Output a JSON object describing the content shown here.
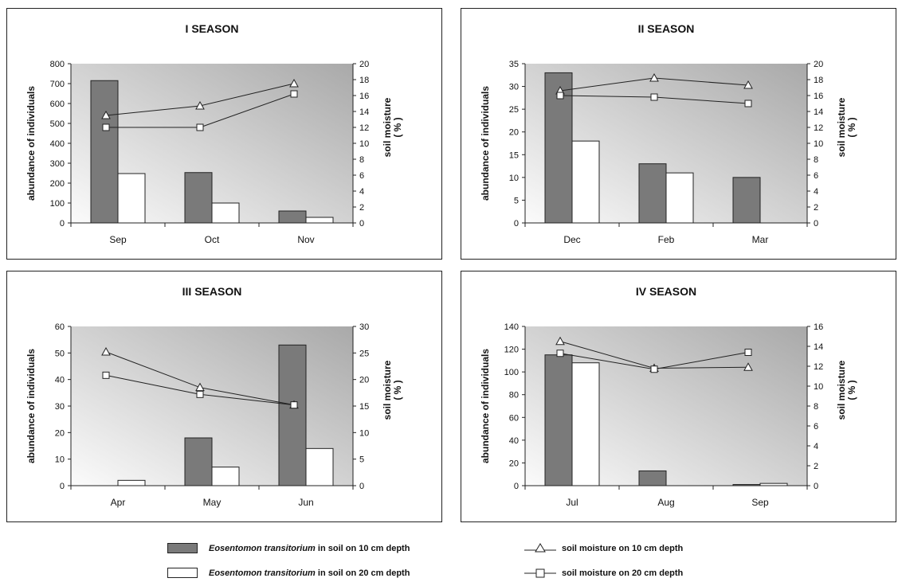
{
  "colors": {
    "bar_10cm": "#7a7a7a",
    "bar_20cm": "#ffffff",
    "line": "#222222",
    "plot_bg_light": "#fbfbfb",
    "plot_bg_dark": "#a9a9a9"
  },
  "chart_data": [
    {
      "type": "bar",
      "title": "I SEASON",
      "categories": [
        "Sep",
        "Oct",
        "Nov"
      ],
      "ylabel": "abundance of individuals",
      "y2label_line1": "soil moisture",
      "y2label_line2": "( % )",
      "ylim": [
        0,
        800
      ],
      "yticks": [
        0,
        100,
        200,
        300,
        400,
        500,
        600,
        700,
        800
      ],
      "y2lim": [
        0,
        20
      ],
      "y2ticks": [
        0,
        2,
        4,
        6,
        8,
        10,
        12,
        14,
        16,
        18,
        20
      ],
      "series": [
        {
          "legend_ref": "bar10",
          "values": [
            715,
            253,
            60
          ]
        },
        {
          "legend_ref": "bar20",
          "values": [
            248,
            100,
            28
          ]
        }
      ],
      "lines": [
        {
          "legend_ref": "moist10",
          "marker": "triangle",
          "values": [
            13.5,
            14.7,
            17.5
          ]
        },
        {
          "legend_ref": "moist20",
          "marker": "square",
          "values": [
            12,
            12,
            16.2
          ]
        }
      ]
    },
    {
      "type": "bar",
      "title": "II SEASON",
      "categories": [
        "Dec",
        "Feb",
        "Mar"
      ],
      "ylabel": "abundance of individuals",
      "y2label_line1": "soil moisture",
      "y2label_line2": "( % )",
      "ylim": [
        0,
        35
      ],
      "yticks": [
        0,
        5,
        10,
        15,
        20,
        25,
        30,
        35
      ],
      "y2lim": [
        0,
        20
      ],
      "y2ticks": [
        0,
        2,
        4,
        6,
        8,
        10,
        12,
        14,
        16,
        18,
        20
      ],
      "series": [
        {
          "legend_ref": "bar10",
          "values": [
            33,
            13,
            10
          ]
        },
        {
          "legend_ref": "bar20",
          "values": [
            18,
            11,
            0
          ]
        }
      ],
      "lines": [
        {
          "legend_ref": "moist10",
          "marker": "triangle",
          "values": [
            16.6,
            18.2,
            17.3
          ]
        },
        {
          "legend_ref": "moist20",
          "marker": "square",
          "values": [
            16,
            15.8,
            15
          ]
        }
      ]
    },
    {
      "type": "bar",
      "title": "III SEASON",
      "categories": [
        "Apr",
        "May",
        "Jun"
      ],
      "ylabel": "abundance of individuals",
      "y2label_line1": "soil moisture",
      "y2label_line2": "( % )",
      "ylim": [
        0,
        60
      ],
      "yticks": [
        0,
        10,
        20,
        30,
        40,
        50,
        60
      ],
      "y2lim": [
        0,
        30
      ],
      "y2ticks": [
        0,
        5,
        10,
        15,
        20,
        25,
        30
      ],
      "series": [
        {
          "legend_ref": "bar10",
          "values": [
            0,
            18,
            53
          ]
        },
        {
          "legend_ref": "bar20",
          "values": [
            2,
            7,
            14
          ]
        }
      ],
      "lines": [
        {
          "legend_ref": "moist10",
          "marker": "triangle",
          "values": [
            25.2,
            18.5,
            15.2
          ]
        },
        {
          "legend_ref": "moist20",
          "marker": "square",
          "values": [
            20.8,
            17.2,
            15.2
          ]
        }
      ]
    },
    {
      "type": "bar",
      "title": "IV SEASON",
      "categories": [
        "Jul",
        "Aug",
        "Sep"
      ],
      "ylabel": "abundance of individuals",
      "y2label_line1": "soil moisture",
      "y2label_line2": "( % )",
      "ylim": [
        0,
        140
      ],
      "yticks": [
        0,
        20,
        40,
        60,
        80,
        100,
        120,
        140
      ],
      "y2lim": [
        0,
        16
      ],
      "y2ticks": [
        0,
        2,
        4,
        6,
        8,
        10,
        12,
        14,
        16
      ],
      "series": [
        {
          "legend_ref": "bar10",
          "values": [
            115,
            13,
            1
          ]
        },
        {
          "legend_ref": "bar20",
          "values": [
            108,
            0,
            2
          ]
        }
      ],
      "lines": [
        {
          "legend_ref": "moist10",
          "marker": "triangle",
          "values": [
            14.5,
            11.8,
            11.9
          ]
        },
        {
          "legend_ref": "moist20",
          "marker": "square",
          "values": [
            13.3,
            11.7,
            13.4
          ]
        }
      ]
    }
  ],
  "legend": {
    "bar10": {
      "species": "Eosentomon transitorium",
      "text": " in soil on 10 cm depth"
    },
    "bar20": {
      "species": "Eosentomon transitorium",
      "text": " in soil on 20 cm depth"
    },
    "moist10": {
      "text": "soil moisture on 10 cm depth"
    },
    "moist20": {
      "text": "soil moisture on 20 cm depth"
    }
  }
}
